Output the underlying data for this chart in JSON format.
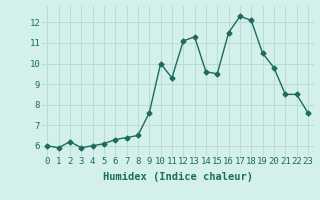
{
  "title": "",
  "xlabel": "Humidex (Indice chaleur)",
  "ylabel": "",
  "x": [
    0,
    1,
    2,
    3,
    4,
    5,
    6,
    7,
    8,
    9,
    10,
    11,
    12,
    13,
    14,
    15,
    16,
    17,
    18,
    19,
    20,
    21,
    22,
    23
  ],
  "y": [
    6.0,
    5.9,
    6.2,
    5.9,
    6.0,
    6.1,
    6.3,
    6.4,
    6.5,
    7.6,
    10.0,
    9.3,
    11.1,
    11.3,
    9.6,
    9.5,
    11.5,
    12.3,
    12.1,
    10.5,
    9.8,
    8.5,
    8.5,
    7.6
  ],
  "line_color": "#1d6b5e",
  "marker": "D",
  "marker_size": 2.5,
  "line_width": 1.0,
  "bg_color": "#d4f0eb",
  "grid_color": "#b8ddd7",
  "tick_label_fontsize": 6.5,
  "axis_label_fontsize": 7.5,
  "ylim": [
    5.5,
    12.8
  ],
  "yticks": [
    6,
    7,
    8,
    9,
    10,
    11,
    12
  ],
  "xlim": [
    -0.5,
    23.5
  ]
}
